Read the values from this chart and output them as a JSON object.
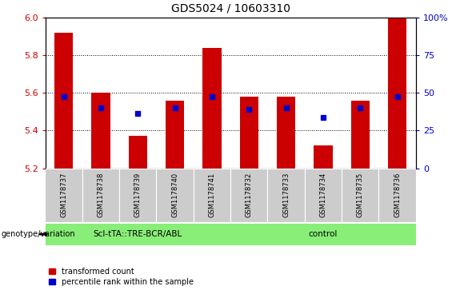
{
  "title": "GDS5024 / 10603310",
  "samples": [
    "GSM1178737",
    "GSM1178738",
    "GSM1178739",
    "GSM1178740",
    "GSM1178741",
    "GSM1178732",
    "GSM1178733",
    "GSM1178734",
    "GSM1178735",
    "GSM1178736"
  ],
  "red_values": [
    5.92,
    5.6,
    5.37,
    5.56,
    5.84,
    5.58,
    5.58,
    5.32,
    5.56,
    6.0
  ],
  "blue_values": [
    5.58,
    5.52,
    5.49,
    5.52,
    5.58,
    5.51,
    5.52,
    5.47,
    5.52,
    5.58
  ],
  "ylim_left": [
    5.2,
    6.0
  ],
  "ylim_right": [
    0,
    100
  ],
  "yticks_left": [
    5.2,
    5.4,
    5.6,
    5.8,
    6.0
  ],
  "yticks_right": [
    0,
    25,
    50,
    75,
    100
  ],
  "group1_label": "Scl-tTA::TRE-BCR/ABL",
  "group2_label": "control",
  "group1_count": 5,
  "group2_count": 5,
  "bar_color_red": "#cc0000",
  "bar_color_blue": "#0000cc",
  "group1_bg": "#88ee77",
  "group2_bg": "#88ee77",
  "tick_bg": "#cccccc",
  "legend_label_red": "transformed count",
  "legend_label_blue": "percentile rank within the sample",
  "left_tick_color": "#cc0000",
  "right_tick_color": "#0000cc",
  "bar_width": 0.5,
  "blue_marker_size": 5,
  "gridline_yticks": [
    5.4,
    5.6,
    5.8
  ]
}
